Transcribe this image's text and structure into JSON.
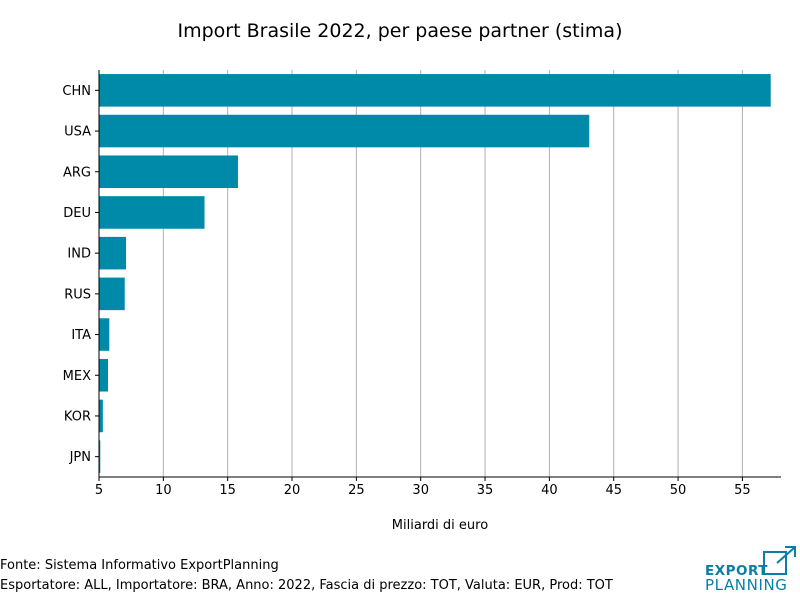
{
  "chart_data": {
    "type": "bar",
    "orientation": "horizontal",
    "title": "Import Brasile 2022, per paese partner (stima)",
    "xlabel": "Miliardi di euro",
    "ylabel": "",
    "categories": [
      "CHN",
      "USA",
      "ARG",
      "DEU",
      "IND",
      "RUS",
      "ITA",
      "MEX",
      "KOR",
      "JPN"
    ],
    "values": [
      57.2,
      43.1,
      15.8,
      13.2,
      7.1,
      7.0,
      5.8,
      5.7,
      5.3,
      5.1
    ],
    "xlim": [
      5,
      58
    ],
    "xticks": [
      5,
      10,
      15,
      20,
      25,
      30,
      35,
      40,
      45,
      50,
      55
    ],
    "grid": "vertical",
    "colors": {
      "bar": "#008aaa",
      "grid": "#b0b0b0",
      "axis": "#000000"
    }
  },
  "footer": {
    "source": "Fonte: Sistema Informativo ExportPlanning",
    "details": "Esportatore: ALL, Importatore: BRA, Anno: 2022, Fascia di prezzo: TOT, Valuta: EUR, Prod: TOT"
  },
  "logo": {
    "line1": "EXPORT",
    "line2": "PLANNING",
    "color": "#0a7ea5"
  }
}
